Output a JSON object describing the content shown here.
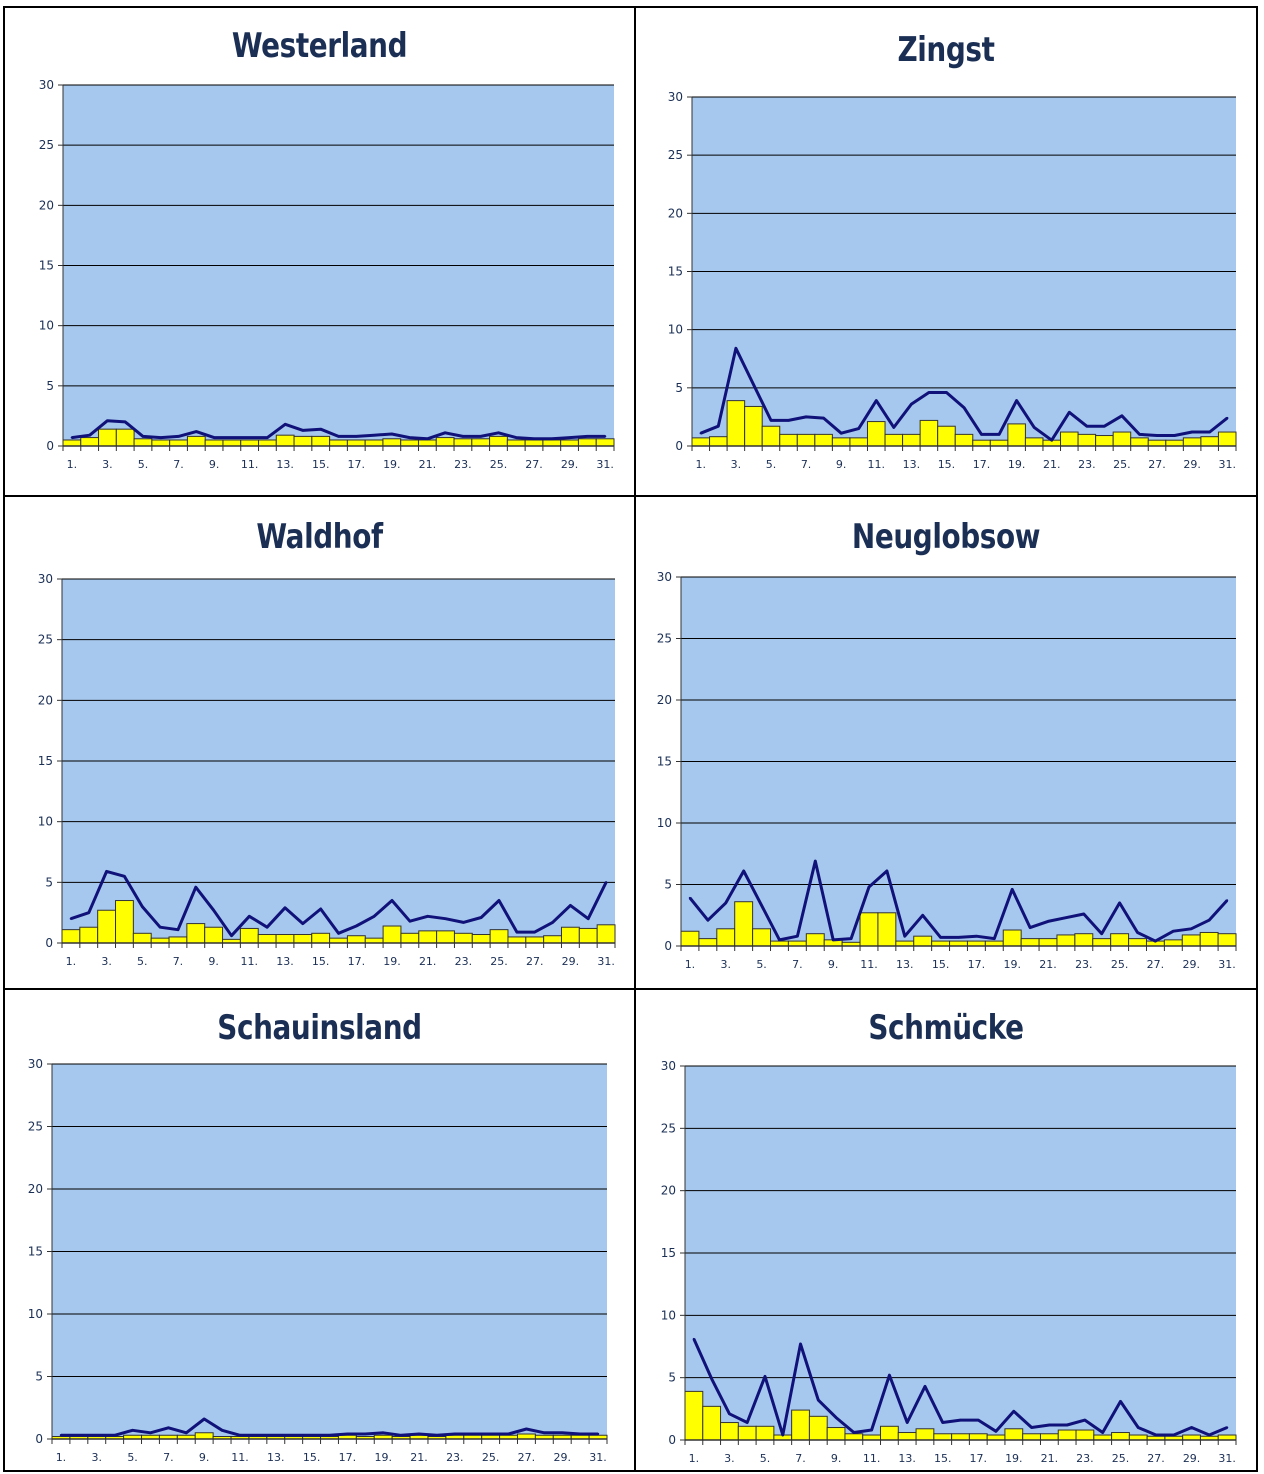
{
  "colors": {
    "plot_background": "#a7c8ee",
    "bar_fill": "#ffff00",
    "bar_stroke": "#333333",
    "line": "#10127a",
    "grid": "#000000",
    "title": "#1b2f55"
  },
  "chart_data": [
    {
      "type": "bar",
      "title": "Westerland",
      "ylim": [
        0,
        30
      ],
      "yticks": [
        0,
        5,
        10,
        15,
        20,
        25,
        30
      ],
      "x": [
        1,
        2,
        3,
        4,
        5,
        6,
        7,
        8,
        9,
        10,
        11,
        12,
        13,
        14,
        15,
        16,
        17,
        18,
        19,
        20,
        21,
        22,
        23,
        24,
        25,
        26,
        27,
        28,
        29,
        30,
        31
      ],
      "xtick_labels": [
        "1.",
        "3.",
        "5.",
        "7.",
        "9.",
        "11.",
        "13.",
        "15.",
        "17.",
        "19.",
        "21.",
        "23.",
        "25.",
        "27.",
        "29.",
        "31."
      ],
      "grid": true,
      "series": [
        {
          "kind": "bar",
          "values": [
            0.5,
            0.7,
            1.4,
            1.4,
            0.6,
            0.5,
            0.5,
            0.8,
            0.5,
            0.5,
            0.5,
            0.5,
            0.9,
            0.8,
            0.8,
            0.5,
            0.5,
            0.5,
            0.6,
            0.5,
            0.5,
            0.7,
            0.6,
            0.6,
            0.8,
            0.5,
            0.5,
            0.5,
            0.5,
            0.6,
            0.6
          ]
        },
        {
          "kind": "line",
          "values": [
            0.7,
            0.9,
            2.1,
            2.0,
            0.8,
            0.7,
            0.8,
            1.2,
            0.7,
            0.7,
            0.7,
            0.7,
            1.8,
            1.3,
            1.4,
            0.8,
            0.8,
            0.9,
            1.0,
            0.7,
            0.6,
            1.1,
            0.8,
            0.8,
            1.1,
            0.7,
            0.6,
            0.6,
            0.7,
            0.8,
            0.8
          ]
        }
      ]
    },
    {
      "type": "bar",
      "title": "Zingst",
      "ylim": [
        0,
        30
      ],
      "yticks": [
        0,
        5,
        10,
        15,
        20,
        25,
        30
      ],
      "x": [
        1,
        2,
        3,
        4,
        5,
        6,
        7,
        8,
        9,
        10,
        11,
        12,
        13,
        14,
        15,
        16,
        17,
        18,
        19,
        20,
        21,
        22,
        23,
        24,
        25,
        26,
        27,
        28,
        29,
        30,
        31
      ],
      "xtick_labels": [
        "1.",
        "3.",
        "5.",
        "7.",
        "9.",
        "11.",
        "13.",
        "15.",
        "17.",
        "19.",
        "21.",
        "23.",
        "25.",
        "27.",
        "29.",
        "31."
      ],
      "grid": true,
      "series": [
        {
          "kind": "bar",
          "values": [
            0.7,
            0.8,
            3.9,
            3.4,
            1.7,
            1.0,
            1.0,
            1.0,
            0.7,
            0.7,
            2.1,
            1.0,
            1.0,
            2.2,
            1.7,
            1.0,
            0.5,
            0.5,
            1.9,
            0.7,
            0.5,
            1.2,
            1.0,
            0.9,
            1.2,
            0.7,
            0.5,
            0.5,
            0.7,
            0.8,
            1.2
          ]
        },
        {
          "kind": "line",
          "values": [
            1.1,
            1.7,
            8.4,
            5.3,
            2.2,
            2.2,
            2.5,
            2.4,
            1.1,
            1.5,
            3.9,
            1.6,
            3.6,
            4.6,
            4.6,
            3.3,
            1.0,
            1.0,
            3.9,
            1.6,
            0.5,
            2.9,
            1.7,
            1.7,
            2.6,
            1.0,
            0.9,
            0.9,
            1.2,
            1.2,
            2.4
          ]
        }
      ]
    },
    {
      "type": "bar",
      "title": "Waldhof",
      "ylim": [
        0,
        30
      ],
      "yticks": [
        0,
        5,
        10,
        15,
        20,
        25,
        30
      ],
      "x": [
        1,
        2,
        3,
        4,
        5,
        6,
        7,
        8,
        9,
        10,
        11,
        12,
        13,
        14,
        15,
        16,
        17,
        18,
        19,
        20,
        21,
        22,
        23,
        24,
        25,
        26,
        27,
        28,
        29,
        30,
        31
      ],
      "xtick_labels": [
        "1.",
        "3.",
        "5.",
        "7.",
        "9.",
        "11.",
        "13.",
        "15.",
        "17.",
        "19.",
        "21.",
        "23.",
        "25.",
        "27.",
        "29.",
        "31."
      ],
      "grid": true,
      "series": [
        {
          "kind": "bar",
          "values": [
            1.1,
            1.3,
            2.7,
            3.5,
            0.8,
            0.4,
            0.5,
            1.6,
            1.3,
            0.3,
            1.2,
            0.7,
            0.7,
            0.7,
            0.8,
            0.4,
            0.6,
            0.4,
            1.4,
            0.8,
            1.0,
            1.0,
            0.8,
            0.7,
            1.1,
            0.5,
            0.5,
            0.6,
            1.3,
            1.2,
            1.5
          ]
        },
        {
          "kind": "line",
          "values": [
            2.0,
            2.5,
            5.9,
            5.5,
            3.0,
            1.3,
            1.1,
            4.6,
            2.7,
            0.6,
            2.2,
            1.3,
            2.9,
            1.6,
            2.8,
            0.8,
            1.4,
            2.2,
            3.5,
            1.8,
            2.2,
            2.0,
            1.7,
            2.1,
            3.5,
            0.9,
            0.9,
            1.7,
            3.1,
            2.0,
            5.0
          ]
        }
      ]
    },
    {
      "type": "bar",
      "title": "Neuglobsow",
      "ylim": [
        0,
        30
      ],
      "yticks": [
        0,
        5,
        10,
        15,
        20,
        25,
        30
      ],
      "x": [
        1,
        2,
        3,
        4,
        5,
        6,
        7,
        8,
        9,
        10,
        11,
        12,
        13,
        14,
        15,
        16,
        17,
        18,
        19,
        20,
        21,
        22,
        23,
        24,
        25,
        26,
        27,
        28,
        29,
        30,
        31
      ],
      "xtick_labels": [
        "1.",
        "3.",
        "5.",
        "7.",
        "9.",
        "11.",
        "13.",
        "15.",
        "17.",
        "19.",
        "21.",
        "23.",
        "25.",
        "27.",
        "29.",
        "31."
      ],
      "grid": true,
      "series": [
        {
          "kind": "bar",
          "values": [
            1.2,
            0.6,
            1.4,
            3.6,
            1.4,
            0.4,
            0.4,
            1.0,
            0.5,
            0.3,
            2.7,
            2.7,
            0.4,
            0.8,
            0.4,
            0.4,
            0.4,
            0.4,
            1.3,
            0.6,
            0.6,
            0.9,
            1.0,
            0.6,
            1.0,
            0.6,
            0.4,
            0.5,
            0.9,
            1.1,
            1.0
          ]
        },
        {
          "kind": "line",
          "values": [
            3.9,
            2.1,
            3.5,
            6.1,
            3.3,
            0.5,
            0.8,
            6.9,
            0.5,
            0.6,
            4.8,
            6.1,
            0.8,
            2.5,
            0.7,
            0.7,
            0.8,
            0.6,
            4.6,
            1.5,
            2.0,
            2.3,
            2.6,
            1.0,
            3.5,
            1.1,
            0.4,
            1.2,
            1.4,
            2.1,
            3.7
          ]
        }
      ]
    },
    {
      "type": "bar",
      "title": "Schauinsland",
      "ylim": [
        0,
        30
      ],
      "yticks": [
        0,
        5,
        10,
        15,
        20,
        25,
        30
      ],
      "x": [
        1,
        2,
        3,
        4,
        5,
        6,
        7,
        8,
        9,
        10,
        11,
        12,
        13,
        14,
        15,
        16,
        17,
        18,
        19,
        20,
        21,
        22,
        23,
        24,
        25,
        26,
        27,
        28,
        29,
        30,
        31
      ],
      "xtick_labels": [
        "1.",
        "3.",
        "5.",
        "7.",
        "9.",
        "11.",
        "13.",
        "15.",
        "17.",
        "19.",
        "21.",
        "23.",
        "25.",
        "27.",
        "29.",
        "31."
      ],
      "grid": true,
      "series": [
        {
          "kind": "bar",
          "values": [
            0.2,
            0.2,
            0.2,
            0.2,
            0.3,
            0.3,
            0.3,
            0.3,
            0.5,
            0.2,
            0.2,
            0.2,
            0.2,
            0.2,
            0.2,
            0.2,
            0.3,
            0.2,
            0.3,
            0.2,
            0.3,
            0.2,
            0.3,
            0.3,
            0.3,
            0.3,
            0.4,
            0.3,
            0.3,
            0.3,
            0.3
          ]
        },
        {
          "kind": "line",
          "values": [
            0.3,
            0.3,
            0.3,
            0.3,
            0.7,
            0.5,
            0.9,
            0.5,
            1.6,
            0.7,
            0.3,
            0.3,
            0.3,
            0.3,
            0.3,
            0.3,
            0.4,
            0.4,
            0.5,
            0.3,
            0.4,
            0.3,
            0.4,
            0.4,
            0.4,
            0.4,
            0.8,
            0.5,
            0.5,
            0.4,
            0.4
          ]
        }
      ]
    },
    {
      "type": "bar",
      "title": "Schmücke",
      "ylim": [
        0,
        30
      ],
      "yticks": [
        0,
        5,
        10,
        15,
        20,
        25,
        30
      ],
      "x": [
        1,
        2,
        3,
        4,
        5,
        6,
        7,
        8,
        9,
        10,
        11,
        12,
        13,
        14,
        15,
        16,
        17,
        18,
        19,
        20,
        21,
        22,
        23,
        24,
        25,
        26,
        27,
        28,
        29,
        30,
        31
      ],
      "xtick_labels": [
        "1.",
        "3.",
        "5.",
        "7.",
        "9.",
        "11.",
        "13.",
        "15.",
        "17.",
        "19.",
        "21.",
        "23.",
        "25.",
        "27.",
        "29.",
        "31."
      ],
      "grid": true,
      "series": [
        {
          "kind": "bar",
          "values": [
            3.9,
            2.7,
            1.4,
            1.1,
            1.1,
            0.4,
            2.4,
            1.9,
            1.0,
            0.5,
            0.4,
            1.1,
            0.6,
            0.9,
            0.5,
            0.5,
            0.5,
            0.4,
            0.9,
            0.5,
            0.5,
            0.8,
            0.8,
            0.4,
            0.6,
            0.4,
            0.3,
            0.3,
            0.4,
            0.3,
            0.4
          ]
        },
        {
          "kind": "line",
          "values": [
            8.1,
            4.9,
            2.1,
            1.4,
            5.1,
            0.4,
            7.7,
            3.2,
            1.8,
            0.6,
            0.8,
            5.2,
            1.4,
            4.3,
            1.4,
            1.6,
            1.6,
            0.7,
            2.3,
            1.0,
            1.2,
            1.2,
            1.6,
            0.6,
            3.1,
            1.0,
            0.4,
            0.4,
            1.0,
            0.4,
            1.0
          ]
        }
      ]
    }
  ]
}
